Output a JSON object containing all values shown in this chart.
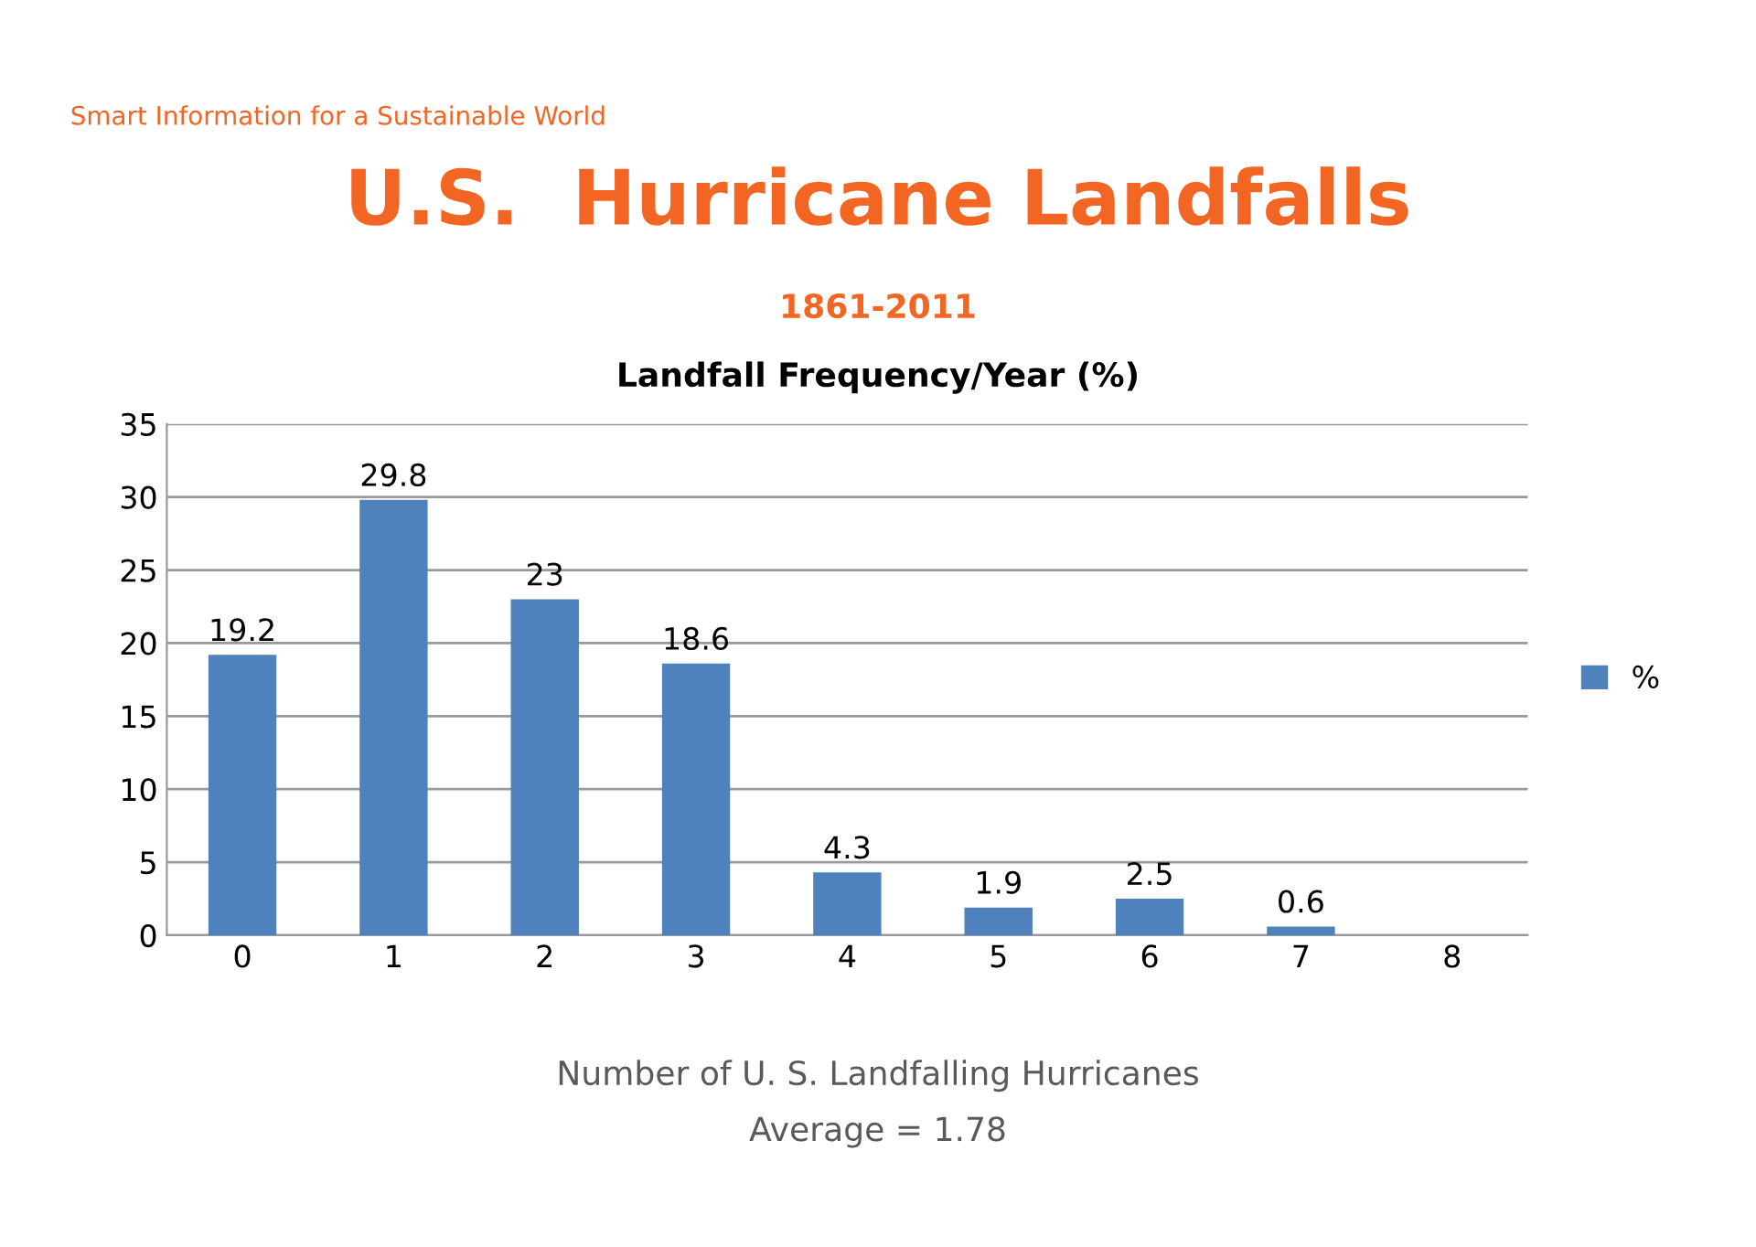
{
  "chart_data": {
    "type": "bar",
    "title": "U.S.  Hurricane Landfalls",
    "subtitle": "1861-2011",
    "annotations": [
      "Smart Information for a Sustainable World",
      "Landfall Frequency/Year (%)",
      "Average = 1.78"
    ],
    "xlabel": "Number of U. S. Landfalling Hurricanes",
    "categories": [
      "0",
      "1",
      "2",
      "3",
      "4",
      "5",
      "6",
      "7",
      "8"
    ],
    "series": [
      {
        "name": "%",
        "color": "#4f81bd",
        "values": [
          19.2,
          29.8,
          23,
          18.6,
          4.3,
          1.9,
          2.5,
          0.6,
          0
        ],
        "value_labels": [
          "19.2",
          "29.8",
          "23",
          "18.6",
          "4.3",
          "1.9",
          "2.5",
          "0.6",
          null
        ]
      }
    ],
    "ylim": [
      0,
      35
    ],
    "yticks": [
      0,
      5,
      10,
      15,
      20,
      25,
      30,
      35
    ],
    "grid": "y",
    "legend": "right"
  }
}
